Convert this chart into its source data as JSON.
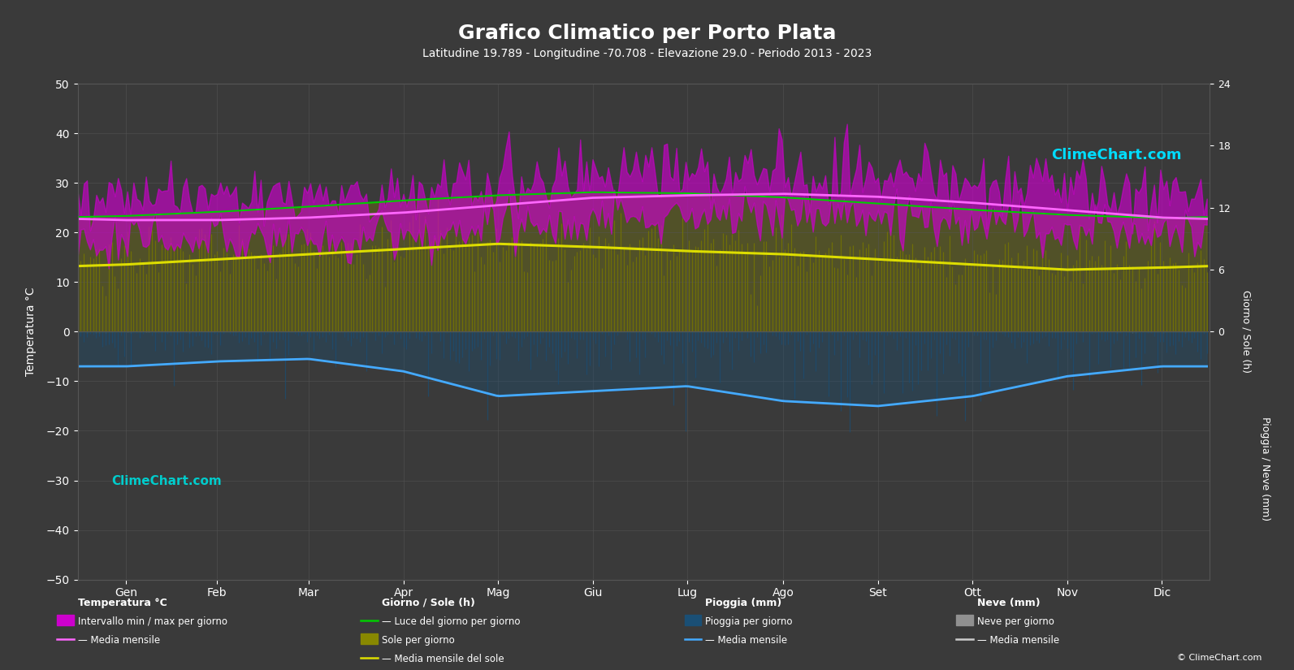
{
  "title": "Grafico Climatico per Porto Plata",
  "subtitle": "Latitudine 19.789 - Longitudine -70.708 - Elevazione 29.0 - Periodo 2013 - 2023",
  "months": [
    "Gen",
    "Feb",
    "Mar",
    "Apr",
    "Mag",
    "Giu",
    "Lug",
    "Ago",
    "Set",
    "Ott",
    "Nov",
    "Dic"
  ],
  "background_color": "#3a3a3a",
  "plot_background": "#3a3a3a",
  "grid_color": "#555555",
  "temp_ylim": [
    -50,
    50
  ],
  "temp_mean": [
    22.5,
    22.5,
    23.0,
    24.0,
    25.5,
    27.0,
    27.5,
    27.8,
    27.2,
    26.0,
    24.5,
    23.0
  ],
  "temp_max_mean": [
    27.0,
    27.0,
    27.5,
    28.5,
    30.0,
    31.5,
    32.0,
    32.2,
    31.5,
    30.0,
    28.5,
    27.5
  ],
  "temp_min_mean": [
    18.5,
    18.0,
    18.5,
    19.5,
    21.0,
    22.5,
    23.0,
    23.5,
    23.0,
    22.0,
    20.5,
    19.0
  ],
  "temp_max_daily_spread": 3.5,
  "temp_min_daily_spread": 2.5,
  "daylight_hours": [
    11.2,
    11.6,
    12.1,
    12.7,
    13.2,
    13.5,
    13.4,
    13.0,
    12.4,
    11.8,
    11.3,
    11.0
  ],
  "sunshine_hours_mean": [
    7.0,
    7.5,
    8.0,
    8.5,
    8.8,
    8.5,
    8.2,
    8.0,
    7.5,
    7.0,
    6.8,
    6.5
  ],
  "sunshine_monthly_mean": [
    6.5,
    7.0,
    7.5,
    8.0,
    8.5,
    8.2,
    7.8,
    7.5,
    7.0,
    6.5,
    6.0,
    6.2
  ],
  "rain_monthly_mean_mm": [
    70,
    60,
    55,
    80,
    130,
    120,
    110,
    140,
    150,
    130,
    90,
    70
  ],
  "snow_daily_max": [
    0.5,
    0.2,
    0,
    0,
    0,
    0,
    0,
    0,
    0,
    0,
    0.2,
    0.5
  ],
  "color_temp_fill": "#cc00cc",
  "color_temp_mean_line": "#ff66ff",
  "color_daylight": "#00cc00",
  "color_sunshine_fill": "#888800",
  "color_sunshine_daily_fill": "#777700",
  "color_sunshine_mean": "#dddd00",
  "color_rain_fill": "#1a4f75",
  "color_rain_line": "#44aaff",
  "color_snow_fill": "#909090",
  "color_snow_line": "#cccccc",
  "text_color": "#ffffff",
  "logo_text": "ClimeChart.com",
  "copyright_text": "© ClimeChart.com",
  "ylabel_left": "Temperatura °C",
  "ylabel_right_top": "Giorno / Sole (h)",
  "ylabel_right_bottom": "Pioggia / Neve (mm)"
}
